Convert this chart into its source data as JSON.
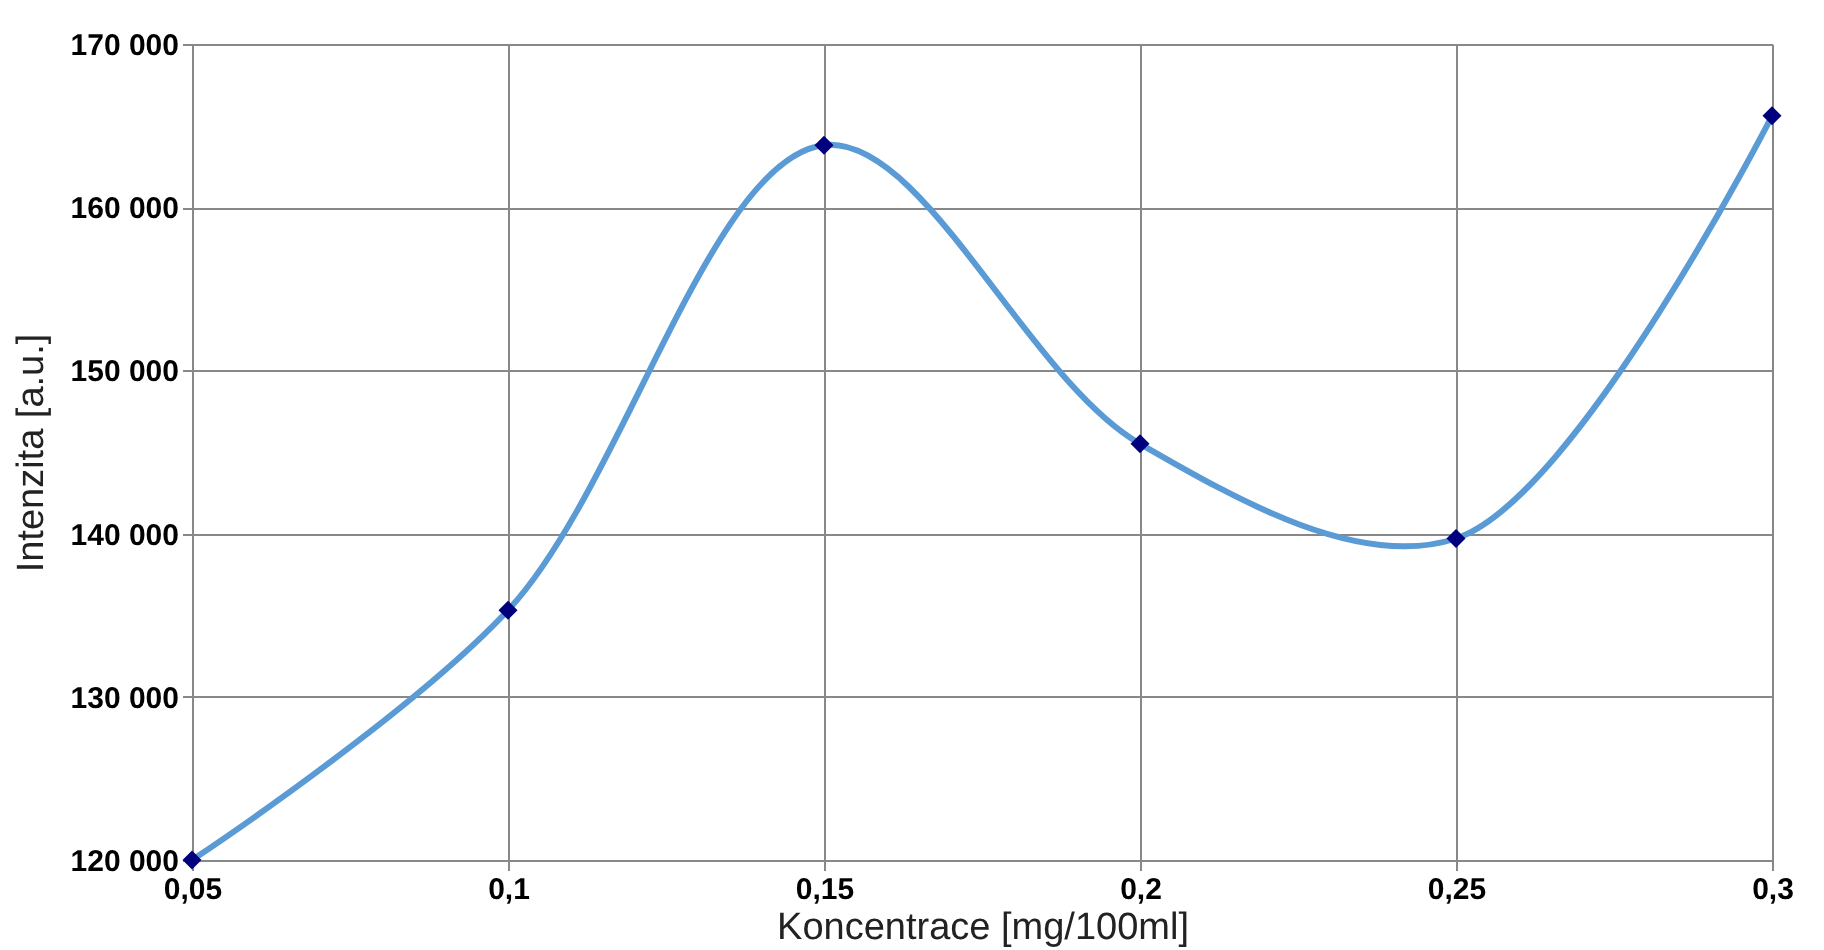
{
  "chart_data": {
    "type": "line",
    "xlabel": "Koncentrace [mg/100ml]",
    "ylabel": "Intenzita [a.u.]",
    "x": [
      0.05,
      0.1,
      0.15,
      0.2,
      0.25,
      0.3
    ],
    "series": [
      {
        "color": "#5b9bd5",
        "colors": [
          "#00007f",
          "#00007f",
          "#00007f",
          "#00007f",
          "#00007f",
          "#00007f"
        ],
        "values": [
          120000,
          135300,
          163800,
          145500,
          139700,
          165600
        ]
      }
    ],
    "xlim": [
      0.05,
      0.3
    ],
    "xticks": [
      {
        "value": 0.05,
        "label": "0,05"
      },
      {
        "value": 0.1,
        "label": "0,1"
      },
      {
        "value": 0.15,
        "label": "0,15"
      },
      {
        "value": 0.2,
        "label": "0,2"
      },
      {
        "value": 0.25,
        "label": "0,25"
      },
      {
        "value": 0.3,
        "label": "0,3"
      }
    ],
    "ylim": [
      120000,
      170000
    ],
    "yticks": [
      {
        "value": 120000,
        "label": "120 000"
      },
      {
        "value": 130000,
        "label": "130 000"
      },
      {
        "value": 140000,
        "label": "140 000"
      },
      {
        "value": 150000,
        "label": "150 000"
      },
      {
        "value": 160000,
        "label": "160 000"
      },
      {
        "value": 170000,
        "label": "170 000"
      }
    ],
    "grid": true,
    "marker": "diamond",
    "line_style": "solid"
  }
}
